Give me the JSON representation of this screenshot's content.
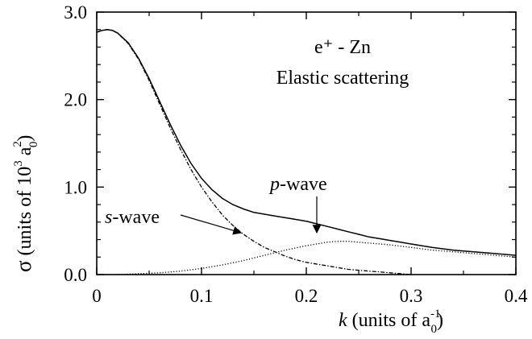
{
  "chart_data": {
    "type": "line",
    "title_lines": [
      "e⁺ - Zn",
      "Elastic scattering"
    ],
    "xlabel": {
      "var": "k",
      "text": " (units of a",
      "sub": "0",
      "sup": "-1",
      "close": ")"
    },
    "ylabel": {
      "var": "σ",
      "text": " (units of 10",
      "sup3": "3",
      "text2": " a",
      "sub": "0",
      "sup2": "2",
      "close": ")"
    },
    "xlim": [
      0,
      0.4
    ],
    "ylim": [
      0,
      3.0
    ],
    "x_ticks": [
      0,
      0.1,
      0.2,
      0.3,
      0.4
    ],
    "x_tick_labels": [
      "0",
      "0.1",
      "0.2",
      "0.3",
      "0.4"
    ],
    "y_ticks": [
      0,
      1.0,
      2.0,
      3.0
    ],
    "y_tick_labels": [
      "0.0",
      "1.0",
      "2.0",
      "3.0"
    ],
    "x_minor_step": 0.05,
    "y_minor_step": 0.2,
    "grid": false,
    "series": [
      {
        "name": "",
        "style": "solid",
        "x": [
          0,
          0.005,
          0.01,
          0.015,
          0.02,
          0.03,
          0.04,
          0.05,
          0.06,
          0.07,
          0.08,
          0.09,
          0.1,
          0.11,
          0.12,
          0.13,
          0.14,
          0.15,
          0.16,
          0.17,
          0.18,
          0.19,
          0.2,
          0.21,
          0.22,
          0.23,
          0.24,
          0.25,
          0.26,
          0.27,
          0.28,
          0.29,
          0.3,
          0.32,
          0.34,
          0.36,
          0.38,
          0.4
        ],
        "y": [
          2.77,
          2.79,
          2.8,
          2.79,
          2.76,
          2.65,
          2.47,
          2.24,
          1.98,
          1.72,
          1.48,
          1.27,
          1.1,
          0.97,
          0.87,
          0.8,
          0.75,
          0.71,
          0.69,
          0.67,
          0.65,
          0.63,
          0.61,
          0.58,
          0.55,
          0.52,
          0.49,
          0.46,
          0.43,
          0.41,
          0.39,
          0.37,
          0.35,
          0.31,
          0.28,
          0.26,
          0.24,
          0.22
        ]
      },
      {
        "name": "s-wave",
        "style": "dashdot",
        "x": [
          0,
          0.005,
          0.01,
          0.015,
          0.02,
          0.03,
          0.04,
          0.05,
          0.06,
          0.07,
          0.08,
          0.09,
          0.1,
          0.11,
          0.12,
          0.13,
          0.14,
          0.15,
          0.16,
          0.17,
          0.18,
          0.19,
          0.2,
          0.21,
          0.22,
          0.23,
          0.24,
          0.25,
          0.26,
          0.27,
          0.28,
          0.29,
          0.3
        ],
        "y": [
          2.77,
          2.79,
          2.8,
          2.79,
          2.76,
          2.64,
          2.46,
          2.22,
          1.95,
          1.68,
          1.43,
          1.2,
          1.0,
          0.83,
          0.68,
          0.56,
          0.46,
          0.38,
          0.31,
          0.26,
          0.21,
          0.17,
          0.14,
          0.12,
          0.1,
          0.08,
          0.06,
          0.05,
          0.04,
          0.03,
          0.02,
          0.01,
          0.0
        ]
      },
      {
        "name": "p-wave",
        "style": "dotted",
        "x": [
          0,
          0.02,
          0.04,
          0.06,
          0.08,
          0.1,
          0.12,
          0.14,
          0.16,
          0.18,
          0.2,
          0.21,
          0.22,
          0.23,
          0.24,
          0.25,
          0.26,
          0.27,
          0.28,
          0.3,
          0.32,
          0.34,
          0.36,
          0.38,
          0.4
        ],
        "y": [
          0,
          0,
          0.01,
          0.02,
          0.04,
          0.07,
          0.11,
          0.16,
          0.22,
          0.28,
          0.33,
          0.35,
          0.37,
          0.38,
          0.38,
          0.37,
          0.36,
          0.35,
          0.34,
          0.31,
          0.28,
          0.26,
          0.24,
          0.22,
          0.2
        ]
      }
    ],
    "annotations": [
      {
        "label_italic": "s",
        "label_rest": "-wave",
        "target": [
          0.14,
          0.46
        ]
      },
      {
        "label_italic": "p",
        "label_rest": "-wave",
        "target": [
          0.21,
          0.35
        ]
      }
    ]
  }
}
